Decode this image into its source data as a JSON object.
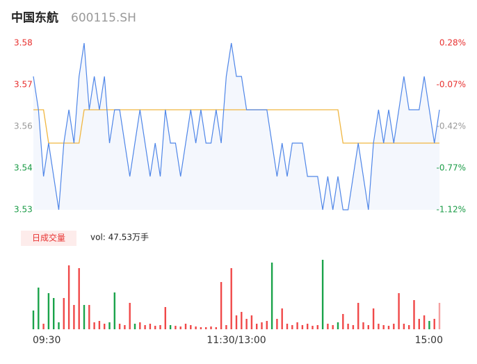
{
  "chart_data": {
    "type": "intraday",
    "title": "中国东航",
    "subtitle": "600115.SH",
    "categories": [
      "09:30",
      null,
      null,
      null,
      null,
      null,
      null,
      null,
      null,
      null,
      null,
      null,
      null,
      null,
      null,
      null,
      null,
      null,
      null,
      null,
      null,
      null,
      null,
      null,
      null,
      null,
      null,
      null,
      null,
      null,
      null,
      null,
      null,
      null,
      null,
      null,
      null,
      null,
      null,
      null,
      "11:30/13:00",
      null,
      null,
      null,
      null,
      null,
      null,
      null,
      null,
      null,
      null,
      null,
      null,
      null,
      null,
      null,
      null,
      null,
      null,
      null,
      null,
      null,
      null,
      null,
      null,
      null,
      null,
      null,
      null,
      null,
      null,
      null,
      null,
      null,
      null,
      null,
      null,
      null,
      null,
      null,
      "15:00"
    ],
    "price": {
      "color": "#4f86e8",
      "area_color": "#f4f7fd",
      "values": [
        3.57,
        3.56,
        3.54,
        3.55,
        3.54,
        3.53,
        3.55,
        3.56,
        3.55,
        3.57,
        3.58,
        3.56,
        3.57,
        3.56,
        3.57,
        3.55,
        3.56,
        3.56,
        3.55,
        3.54,
        3.55,
        3.56,
        3.55,
        3.54,
        3.55,
        3.54,
        3.56,
        3.55,
        3.55,
        3.54,
        3.55,
        3.56,
        3.55,
        3.56,
        3.55,
        3.55,
        3.56,
        3.55,
        3.57,
        3.58,
        3.57,
        3.57,
        3.56,
        3.56,
        3.56,
        3.56,
        3.56,
        3.55,
        3.54,
        3.55,
        3.54,
        3.55,
        3.55,
        3.55,
        3.54,
        3.54,
        3.54,
        3.53,
        3.54,
        3.53,
        3.54,
        3.53,
        3.53,
        3.54,
        3.55,
        3.54,
        3.53,
        3.55,
        3.56,
        3.55,
        3.56,
        3.55,
        3.56,
        3.57,
        3.56,
        3.56,
        3.56,
        3.57,
        3.56,
        3.55,
        3.56
      ]
    },
    "average": {
      "color": "#f0b640",
      "values": [
        3.56,
        3.56,
        3.56,
        3.55,
        3.55,
        3.55,
        3.55,
        3.55,
        3.55,
        3.55,
        3.56,
        3.56,
        3.56,
        3.56,
        3.56,
        3.56,
        3.56,
        3.56,
        3.56,
        3.56,
        3.56,
        3.56,
        3.56,
        3.56,
        3.56,
        3.56,
        3.56,
        3.56,
        3.56,
        3.56,
        3.56,
        3.56,
        3.56,
        3.56,
        3.56,
        3.56,
        3.56,
        3.56,
        3.56,
        3.56,
        3.56,
        3.56,
        3.56,
        3.56,
        3.56,
        3.56,
        3.56,
        3.56,
        3.56,
        3.56,
        3.56,
        3.56,
        3.56,
        3.56,
        3.56,
        3.56,
        3.56,
        3.56,
        3.56,
        3.56,
        3.56,
        3.55,
        3.55,
        3.55,
        3.55,
        3.55,
        3.55,
        3.55,
        3.55,
        3.55,
        3.55,
        3.55,
        3.55,
        3.55,
        3.55,
        3.55,
        3.55,
        3.55,
        3.55,
        3.55,
        3.55
      ]
    },
    "ylim": [
      3.53,
      3.58
    ],
    "yticks": [
      {
        "value": 3.58,
        "label": "3.58"
      },
      {
        "value": 3.5675,
        "label": "3.57"
      },
      {
        "value": 3.555,
        "label": "3.56"
      },
      {
        "value": 3.5425,
        "label": "3.54"
      },
      {
        "value": 3.53,
        "label": "3.53"
      }
    ],
    "y2lim": [
      -1.12,
      0.28
    ],
    "y2ticks": [
      {
        "value": 0.28,
        "label": "0.28%"
      },
      {
        "value": -0.07,
        "label": "-0.07%"
      },
      {
        "value": -0.42,
        "label": "-0.42%"
      },
      {
        "value": -0.77,
        "label": "-0.77%"
      },
      {
        "value": -1.12,
        "label": "-1.12%"
      }
    ],
    "tick_colors": {
      "up": "#e8302f",
      "flat": "#999999",
      "down": "#1a9b46"
    },
    "volume": {
      "label": "日成交量",
      "text": "vol: 47.53万手",
      "ylim": [
        0,
        110
      ],
      "values": [
        27,
        60,
        8,
        52,
        45,
        10,
        45,
        92,
        35,
        88,
        35,
        35,
        10,
        12,
        8,
        10,
        53,
        8,
        6,
        38,
        8,
        10,
        6,
        8,
        5,
        6,
        32,
        6,
        5,
        4,
        8,
        6,
        4,
        3,
        3,
        4,
        3,
        68,
        6,
        88,
        20,
        25,
        15,
        20,
        8,
        10,
        12,
        96,
        15,
        30,
        8,
        6,
        10,
        6,
        8,
        5,
        6,
        100,
        8,
        6,
        10,
        22,
        8,
        6,
        38,
        10,
        6,
        30,
        8,
        6,
        5,
        8,
        52,
        8,
        6,
        42,
        15,
        20,
        12,
        15,
        38
      ],
      "colors": [
        "#1aa34a",
        "#1aa34a",
        "#f04848",
        "#1aa34a",
        "#1aa34a",
        "#1aa34a",
        "#f04848",
        "#f04848",
        "#f04848",
        "#f04848",
        "#1aa34a",
        "#f04848",
        "#f04848",
        "#f04848",
        "#f04848",
        "#1aa34a",
        "#1aa34a",
        "#f04848",
        "#f04848",
        "#f04848",
        "#1aa34a",
        "#f04848",
        "#f04848",
        "#f04848",
        "#f04848",
        "#f04848",
        "#f04848",
        "#1aa34a",
        "#f04848",
        "#f04848",
        "#f04848",
        "#f04848",
        "#f04848",
        "#f04848",
        "#f04848",
        "#f04848",
        "#f04848",
        "#f04848",
        "#f04848",
        "#f04848",
        "#f04848",
        "#f04848",
        "#f04848",
        "#f04848",
        "#f04848",
        "#f04848",
        "#f04848",
        "#1aa34a",
        "#f04848",
        "#f04848",
        "#f04848",
        "#f04848",
        "#f04848",
        "#f04848",
        "#f04848",
        "#f04848",
        "#f04848",
        "#1aa34a",
        "#f04848",
        "#f04848",
        "#1aa34a",
        "#f04848",
        "#f04848",
        "#f04848",
        "#f04848",
        "#f04848",
        "#f04848",
        "#f04848",
        "#f04848",
        "#f04848",
        "#f04848",
        "#f04848",
        "#f04848",
        "#f04848",
        "#f04848",
        "#f04848",
        "#f04848",
        "#f04848",
        "#1aa34a",
        "#f04848",
        "#f4a0a0"
      ]
    }
  }
}
